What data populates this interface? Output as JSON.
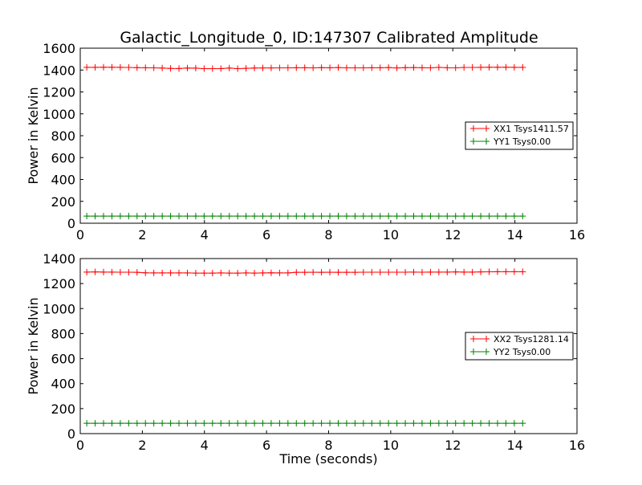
{
  "title": "Galactic_Longitude_0, ID:147307 Calibrated Amplitude",
  "chart_data": [
    {
      "type": "line",
      "xlabel": "",
      "ylabel": "Power in Kelvin",
      "xlim": [
        0,
        16
      ],
      "ylim": [
        0,
        1600
      ],
      "xticks": [
        "0",
        "2",
        "4",
        "6",
        "8",
        "10",
        "12",
        "14",
        "16"
      ],
      "yticks": [
        "0",
        "200",
        "400",
        "600",
        "800",
        "1000",
        "1200",
        "1400",
        "1600"
      ],
      "legend_position": "center-right",
      "x_start": 0.21,
      "x_step": 0.27,
      "series": [
        {
          "name": "XX1 Tsys1411.57",
          "color": "#ff0000",
          "values": [
            1425,
            1425,
            1426,
            1426,
            1425,
            1424,
            1422,
            1421,
            1420,
            1418,
            1415,
            1414,
            1418,
            1417,
            1413,
            1413,
            1414,
            1418,
            1413,
            1416,
            1418,
            1419,
            1419,
            1420,
            1420,
            1421,
            1421,
            1420,
            1422,
            1421,
            1423,
            1420,
            1420,
            1420,
            1421,
            1421,
            1423,
            1419,
            1422,
            1423,
            1421,
            1420,
            1425,
            1421,
            1420,
            1424,
            1424,
            1425,
            1426,
            1426,
            1426,
            1425,
            1425
          ]
        },
        {
          "name": "YY1 Tsys0.00",
          "color": "#008000",
          "values": [
            65,
            65,
            65,
            65,
            65,
            65,
            65,
            65,
            65,
            65,
            65,
            65,
            65,
            65,
            65,
            65,
            65,
            65,
            65,
            65,
            65,
            65,
            65,
            65,
            65,
            65,
            65,
            65,
            65,
            65,
            65,
            65,
            65,
            65,
            65,
            65,
            65,
            65,
            65,
            65,
            65,
            65,
            65,
            65,
            65,
            65,
            65,
            65,
            65,
            65,
            65,
            65,
            65
          ]
        }
      ]
    },
    {
      "type": "line",
      "xlabel": "Time (seconds)",
      "ylabel": "Power in Kelvin",
      "xlim": [
        0,
        16
      ],
      "ylim": [
        0,
        1400
      ],
      "xticks": [
        "0",
        "2",
        "4",
        "6",
        "8",
        "10",
        "12",
        "14",
        "16"
      ],
      "yticks": [
        "0",
        "200",
        "400",
        "600",
        "800",
        "1000",
        "1200",
        "1400"
      ],
      "legend_position": "center-right",
      "x_start": 0.21,
      "x_step": 0.27,
      "series": [
        {
          "name": "XX2 Tsys1281.14",
          "color": "#ff0000",
          "values": [
            1292,
            1293,
            1292,
            1292,
            1291,
            1291,
            1290,
            1286,
            1285,
            1285,
            1285,
            1285,
            1285,
            1284,
            1284,
            1284,
            1285,
            1284,
            1284,
            1285,
            1284,
            1285,
            1286,
            1285,
            1285,
            1290,
            1290,
            1291,
            1290,
            1291,
            1290,
            1290,
            1290,
            1291,
            1291,
            1291,
            1291,
            1291,
            1291,
            1292,
            1291,
            1292,
            1292,
            1292,
            1293,
            1292,
            1292,
            1293,
            1294,
            1295,
            1295,
            1295,
            1295
          ]
        },
        {
          "name": "YY2 Tsys0.00",
          "color": "#008000",
          "values": [
            83,
            83,
            83,
            83,
            83,
            83,
            83,
            83,
            83,
            83,
            83,
            83,
            83,
            83,
            83,
            83,
            83,
            83,
            83,
            83,
            83,
            83,
            83,
            83,
            83,
            83,
            83,
            83,
            83,
            83,
            83,
            83,
            83,
            83,
            83,
            83,
            83,
            83,
            83,
            83,
            83,
            83,
            83,
            83,
            83,
            83,
            83,
            83,
            83,
            83,
            83,
            83,
            83
          ]
        }
      ]
    }
  ]
}
